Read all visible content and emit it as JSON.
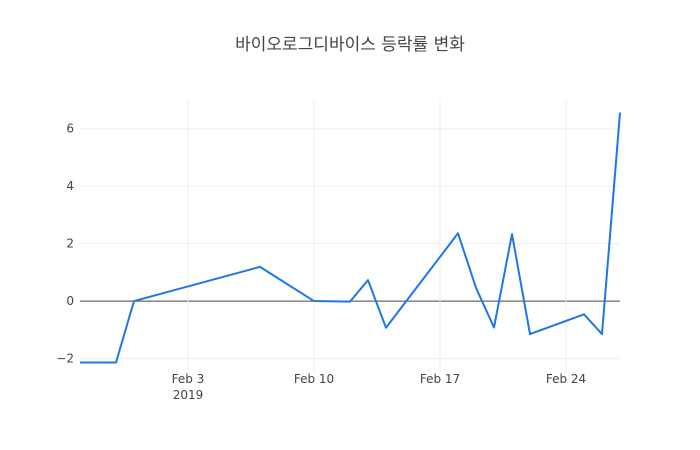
{
  "chart_data": {
    "type": "line",
    "title": "바이오로그디바이스 등락률 변화",
    "xlabel": "",
    "ylabel": "",
    "x_range": [
      "2019-01-28",
      "2019-02-27"
    ],
    "ylim": [
      -2.4,
      7.0
    ],
    "grid": true,
    "x_ticks": [
      {
        "date": "2019-02-03",
        "label": "Feb 3",
        "sublabel": "2019"
      },
      {
        "date": "2019-02-10",
        "label": "Feb 10",
        "sublabel": ""
      },
      {
        "date": "2019-02-17",
        "label": "Feb 17",
        "sublabel": ""
      },
      {
        "date": "2019-02-24",
        "label": "Feb 24",
        "sublabel": ""
      }
    ],
    "y_ticks": [
      {
        "value": -2,
        "label": "−2"
      },
      {
        "value": 0,
        "label": "0"
      },
      {
        "value": 2,
        "label": "2"
      },
      {
        "value": 4,
        "label": "4"
      },
      {
        "value": 6,
        "label": "6"
      }
    ],
    "series": [
      {
        "color": "#1f77e4",
        "x": [
          "2019-01-28",
          "2019-01-30",
          "2019-01-31",
          "2019-02-07",
          "2019-02-10",
          "2019-02-12",
          "2019-02-13",
          "2019-02-14",
          "2019-02-18",
          "2019-02-19",
          "2019-02-20",
          "2019-02-21",
          "2019-02-22",
          "2019-02-25",
          "2019-02-26",
          "2019-02-27"
        ],
        "y": [
          -2.14,
          -2.14,
          0.0,
          1.19,
          0.0,
          -0.02,
          0.73,
          -0.93,
          2.36,
          0.46,
          -0.92,
          2.33,
          -1.15,
          -0.46,
          -1.15,
          6.56
        ]
      }
    ]
  }
}
